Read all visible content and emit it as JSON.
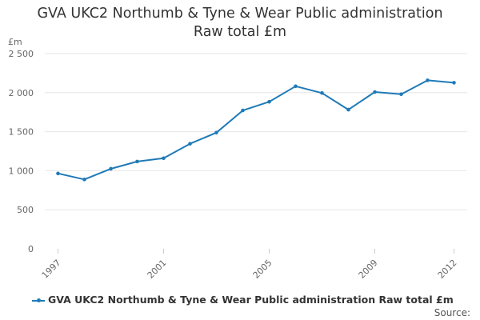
{
  "colors": {
    "series": "#1f7ab8",
    "grid": "#e6e6e6",
    "axis_text": "#666666"
  },
  "chart_data": {
    "type": "line",
    "title_lines": [
      "GVA UKC2 Northumb & Tyne & Wear Public administration",
      "Raw total £m"
    ],
    "ylabel": "£m",
    "ylim": [
      0,
      2500
    ],
    "yticks": [
      0,
      500,
      1000,
      1500,
      2000,
      2500
    ],
    "ytick_labels": [
      "0",
      "500",
      "1 000",
      "1 500",
      "2 000",
      "2 500"
    ],
    "xticks": [
      1997,
      2001,
      2005,
      2009,
      2012
    ],
    "xtick_labels": [
      "1997",
      "2001",
      "2005",
      "2009",
      "2012"
    ],
    "x": [
      1997,
      1998,
      1999,
      2000,
      2001,
      2002,
      2003,
      2004,
      2005,
      2006,
      2007,
      2008,
      2009,
      2010,
      2011,
      2012
    ],
    "series": [
      {
        "name": "GVA UKC2 Northumb & Tyne & Wear Public administration Raw total £m",
        "values": [
          965,
          888,
          1025,
          1118,
          1160,
          1345,
          1488,
          1772,
          1883,
          2082,
          1995,
          1782,
          2008,
          1980,
          2158,
          2127
        ]
      }
    ],
    "grid": "horizontal",
    "legend": "bottom-left",
    "source_label": "Source:"
  }
}
